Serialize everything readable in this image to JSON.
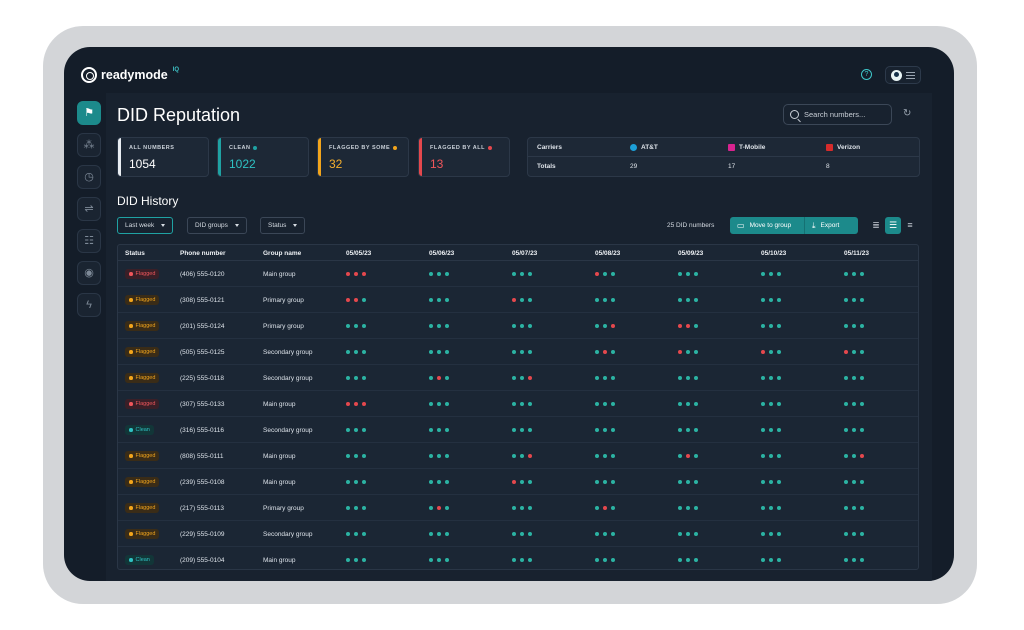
{
  "app": {
    "logo_text": "readymode",
    "logo_badge": "IQ"
  },
  "icons": {
    "help": "help-circle-icon",
    "avatar": "user-avatar-icon",
    "menu": "hamburger-icon",
    "search": "search-icon",
    "refresh": "refresh-icon"
  },
  "sidebar": {
    "items": [
      "flag-icon",
      "apps-icon",
      "clock-icon",
      "flow-icon",
      "dialer-icon",
      "bulb-icon",
      "lightning-icon"
    ],
    "active_index": 0
  },
  "page": {
    "title": "DID Reputation"
  },
  "search": {
    "placeholder": "Search numbers..."
  },
  "stats": [
    {
      "label": "ALL NUMBERS",
      "value": "1054",
      "bar_color": "#e8edf2",
      "value_color": "#ffffff",
      "dot_color": ""
    },
    {
      "label": "CLEAN",
      "value": "1022",
      "bar_color": "#1fa2a3",
      "value_color": "#2fc2c3",
      "dot_color": "#1fa2a3"
    },
    {
      "label": "FLAGGED BY SOME",
      "value": "32",
      "bar_color": "#f2a51c",
      "value_color": "#f5b02e",
      "dot_color": "#f2a51c"
    },
    {
      "label": "FLAGGED BY ALL",
      "value": "13",
      "bar_color": "#e5484d",
      "value_color": "#f0565b",
      "dot_color": "#e5484d"
    }
  ],
  "carriers": {
    "header_label": "Carriers",
    "totals_label": "Totals",
    "list": [
      {
        "name": "AT&T",
        "total": "29",
        "color": "#1c9fd8"
      },
      {
        "name": "T-Mobile",
        "total": "17",
        "color": "#d8238f"
      },
      {
        "name": "Verizon",
        "total": "8",
        "color": "#d62b2b"
      }
    ]
  },
  "history": {
    "title": "DID History",
    "filters": [
      "Last week",
      "DID groups",
      "Status"
    ],
    "count_text": "25 DID numbers",
    "move_label": "Move to group",
    "export_label": "Export",
    "columns": [
      "Status",
      "Phone number",
      "Group name",
      "05/05/23",
      "05/06/23",
      "05/07/23",
      "05/08/23",
      "05/09/23",
      "05/10/23",
      "05/11/23"
    ],
    "rows": [
      {
        "status": "Flagged",
        "status_level": "all",
        "phone": "(406) 555-0120",
        "group": "Main group",
        "days": [
          "rrr",
          "ggg",
          "ggg",
          "rgg",
          "ggg",
          "ggg",
          "ggg"
        ]
      },
      {
        "status": "Flagged",
        "status_level": "some",
        "phone": "(308) 555-0121",
        "group": "Primary group",
        "days": [
          "rrg",
          "ggg",
          "rgg",
          "ggg",
          "ggg",
          "ggg",
          "ggg"
        ]
      },
      {
        "status": "Flagged",
        "status_level": "some",
        "phone": "(201) 555-0124",
        "group": "Primary group",
        "days": [
          "ggg",
          "ggg",
          "ggg",
          "ggr",
          "rrg",
          "ggg",
          "ggg"
        ]
      },
      {
        "status": "Flagged",
        "status_level": "some",
        "phone": "(505) 555-0125",
        "group": "Secondary group",
        "days": [
          "ggg",
          "ggg",
          "ggg",
          "grg",
          "rgg",
          "rgg",
          "rgg"
        ]
      },
      {
        "status": "Flagged",
        "status_level": "some",
        "phone": "(225) 555-0118",
        "group": "Secondary group",
        "days": [
          "ggg",
          "grg",
          "ggr",
          "ggg",
          "ggg",
          "ggg",
          "ggg"
        ]
      },
      {
        "status": "Flagged",
        "status_level": "all",
        "phone": "(307) 555-0133",
        "group": "Main group",
        "days": [
          "rrr",
          "ggg",
          "ggg",
          "ggg",
          "ggg",
          "ggg",
          "ggg"
        ]
      },
      {
        "status": "Clean",
        "status_level": "clean",
        "phone": "(316) 555-0116",
        "group": "Secondary group",
        "days": [
          "ggg",
          "ggg",
          "ggg",
          "ggg",
          "ggg",
          "ggg",
          "ggg"
        ]
      },
      {
        "status": "Flagged",
        "status_level": "some",
        "phone": "(808) 555-0111",
        "group": "Main group",
        "days": [
          "ggg",
          "ggg",
          "ggr",
          "ggg",
          "grg",
          "ggg",
          "ggr"
        ]
      },
      {
        "status": "Flagged",
        "status_level": "some",
        "phone": "(239) 555-0108",
        "group": "Main group",
        "days": [
          "ggg",
          "ggg",
          "rgg",
          "ggg",
          "ggg",
          "ggg",
          "ggg"
        ]
      },
      {
        "status": "Flagged",
        "status_level": "some",
        "phone": "(217) 555-0113",
        "group": "Primary group",
        "days": [
          "ggg",
          "grg",
          "ggg",
          "grg",
          "ggg",
          "ggg",
          "ggg"
        ]
      },
      {
        "status": "Flagged",
        "status_level": "some",
        "phone": "(229) 555-0109",
        "group": "Secondary group",
        "days": [
          "ggg",
          "ggg",
          "ggg",
          "ggg",
          "ggg",
          "ggg",
          "ggg"
        ]
      },
      {
        "status": "Clean",
        "status_level": "clean",
        "phone": "(209) 555-0104",
        "group": "Main group",
        "days": [
          "ggg",
          "ggg",
          "ggg",
          "ggg",
          "ggg",
          "ggg",
          "ggg"
        ]
      }
    ]
  },
  "colors": {
    "accent": "#1c8a8b",
    "dot_green": "#2bb3a3",
    "dot_red": "#e5484d",
    "badge_all_bg": "#3a1f27",
    "badge_all_fg": "#f0565b",
    "badge_some_bg": "#3a2c17",
    "badge_some_fg": "#f2a51c",
    "badge_clean_bg": "#123638",
    "badge_clean_fg": "#2fc2c3"
  }
}
